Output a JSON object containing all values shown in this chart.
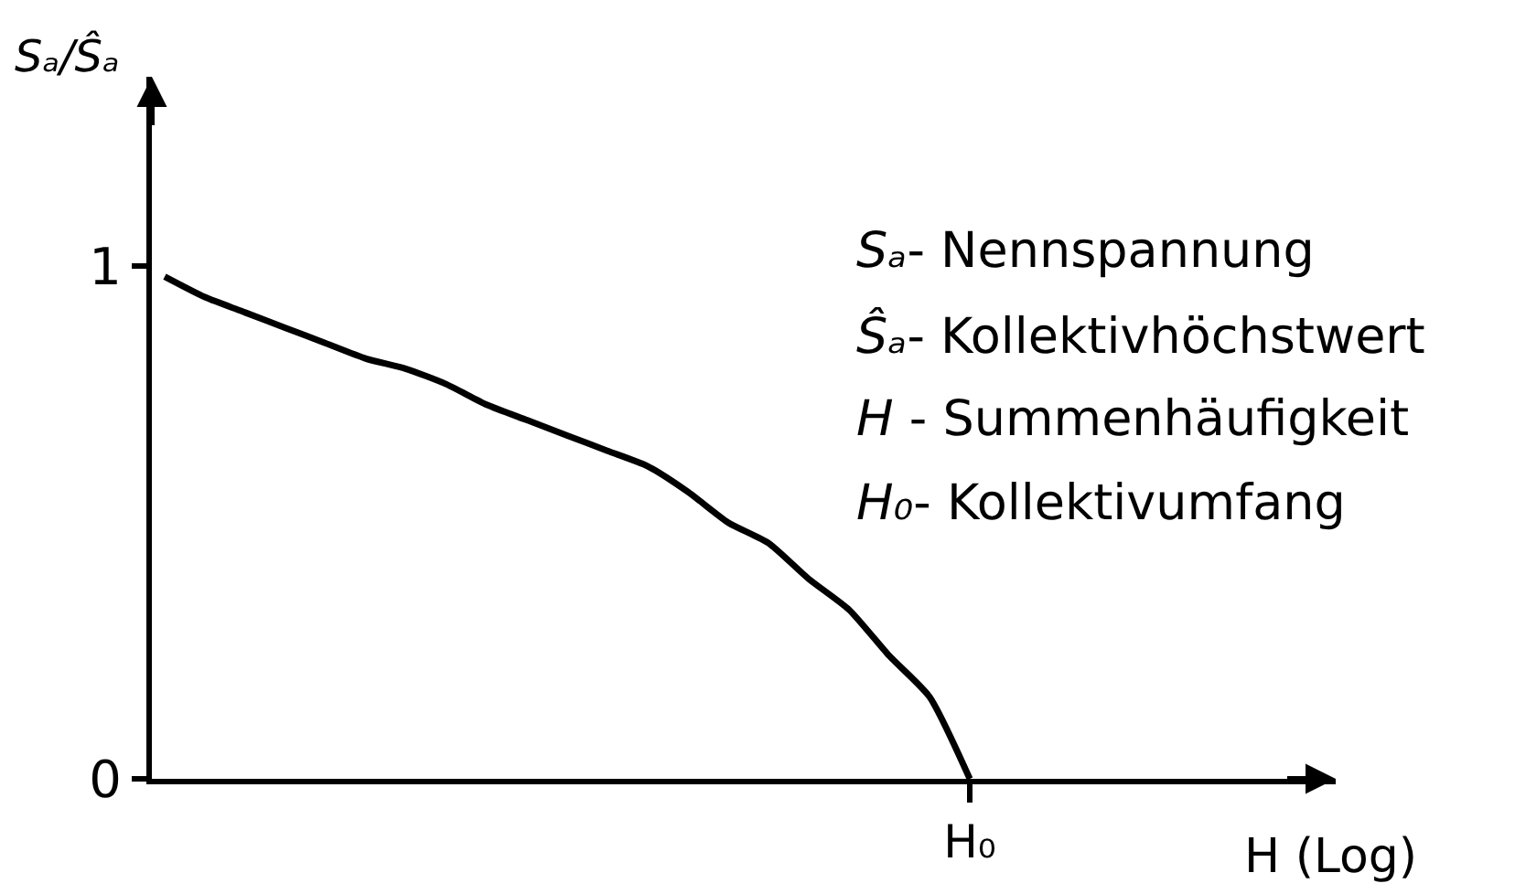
{
  "chart_data": {
    "type": "line",
    "ylabel": "Sₐ/Ŝₐ",
    "categories": [
      null,
      null,
      null,
      null,
      null,
      null,
      null,
      null,
      null,
      null,
      null,
      null,
      null,
      null,
      null,
      null,
      null,
      null,
      null,
      null,
      "H₀"
    ],
    "series": [
      {
        "color": "#000000",
        "values": [
          0.98,
          0.94,
          0.91,
          0.88,
          0.85,
          0.82,
          0.8,
          0.77,
          0.73,
          0.7,
          0.67,
          0.64,
          0.61,
          0.56,
          0.5,
          0.46,
          0.39,
          0.33,
          0.24,
          0.16,
          0
        ]
      }
    ],
    "ylim": [
      0,
      1.37
    ],
    "yticks": [
      0,
      1
    ],
    "annotations": [
      "Sₐ- Nennspannung",
      "Ŝₐ- Kollektivhöchstwert",
      "H - Summenhäufigkeit",
      "H₀- Kollektivumfang",
      "H (Log)"
    ]
  }
}
